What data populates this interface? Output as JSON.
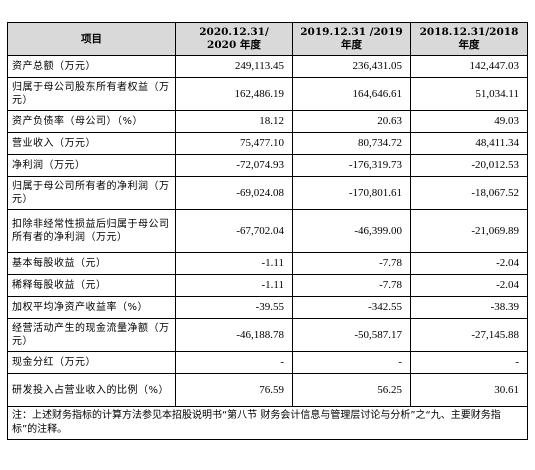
{
  "table": {
    "headers": {
      "item": "项目",
      "col1_line1": "2020.12.31/",
      "col1_line2": "2020 年度",
      "col2_line1": "2019.12.31 /2019",
      "col2_line2": "年度",
      "col3_line1": "2018.12.31/2018",
      "col3_line2": "年度"
    },
    "rows": [
      {
        "label": "资产总额（万元）",
        "v2020": "249,113.45",
        "v2019": "236,431.05",
        "v2018": "142,447.03"
      },
      {
        "label": "归属于母公司股东所有者权益（万元）",
        "v2020": "162,486.19",
        "v2019": "164,646.61",
        "v2018": "51,034.11"
      },
      {
        "label": "资产负债率（母公司）（%）",
        "v2020": "18.12",
        "v2019": "20.63",
        "v2018": "49.03"
      },
      {
        "label": "营业收入（万元）",
        "v2020": "75,477.10",
        "v2019": "80,734.72",
        "v2018": "48,411.34"
      },
      {
        "label": "净利润（万元）",
        "v2020": "-72,074.93",
        "v2019": "-176,319.73",
        "v2018": "-20,012.53"
      },
      {
        "label": "归属于母公司所有者的净利润（万元）",
        "v2020": "-69,024.08",
        "v2019": "-170,801.61",
        "v2018": "-18,067.52"
      },
      {
        "label": "扣除非经常性损益后归属于母公司所有者的净利润（万元）",
        "v2020": "-67,702.04",
        "v2019": "-46,399.00",
        "v2018": "-21,069.89"
      },
      {
        "label": "基本每股收益（元）",
        "v2020": "-1.11",
        "v2019": "-7.78",
        "v2018": "-2.04"
      },
      {
        "label": "稀释每股收益（元）",
        "v2020": "-1.11",
        "v2019": "-7.78",
        "v2018": "-2.04"
      },
      {
        "label": "加权平均净资产收益率（%）",
        "v2020": "-39.55",
        "v2019": "-342.55",
        "v2018": "-38.39"
      },
      {
        "label": "经营活动产生的现金流量净额（万元）",
        "v2020": "-46,188.78",
        "v2019": "-50,587.17",
        "v2018": "-27,145.88"
      },
      {
        "label": "现金分红（万元）",
        "v2020": "-",
        "v2019": "-",
        "v2018": "-"
      },
      {
        "label": "研发投入占营业收入的比例（%）",
        "v2020": "76.59",
        "v2019": "56.25",
        "v2018": "30.61"
      }
    ],
    "note": "注：上述财务指标的计算方法参见本招股说明书“第八节 财务会计信息与管理层讨论与分析”之“九、主要财务指标”的注释。"
  }
}
